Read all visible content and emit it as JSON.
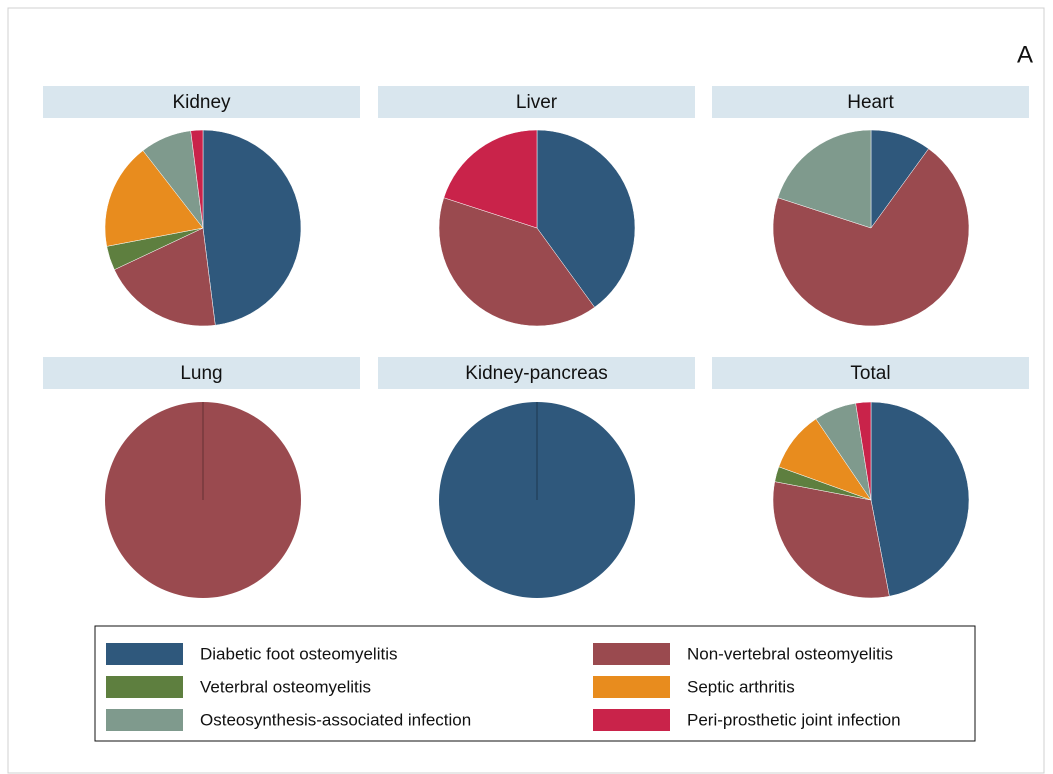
{
  "panel_label": "A",
  "categories": [
    "Diabetic foot osteomyelitis",
    "Non-vertebral osteomyelitis",
    "Veterbral osteomyelitis",
    "Septic arthritis",
    "Osteosynthesis-associated infection",
    "Peri-prosthetic joint infection"
  ],
  "colors": [
    "#2f587c",
    "#9a4a4f",
    "#5e7f3f",
    "#e88c1e",
    "#7f9a8d",
    "#c9234a"
  ],
  "chart_data": [
    {
      "type": "pie",
      "title": "Kidney",
      "values": [
        48,
        20,
        4,
        17.5,
        8.5,
        2
      ]
    },
    {
      "type": "pie",
      "title": "Liver",
      "values": [
        40,
        40,
        0,
        0,
        0,
        20
      ]
    },
    {
      "type": "pie",
      "title": "Heart",
      "values": [
        10,
        70,
        0,
        0,
        20,
        0
      ]
    },
    {
      "type": "pie",
      "title": "Lung",
      "values": [
        0,
        100,
        0,
        0,
        0,
        0
      ]
    },
    {
      "type": "pie",
      "title": "Kidney-pancreas",
      "values": [
        100,
        0,
        0,
        0,
        0,
        0
      ]
    },
    {
      "type": "pie",
      "title": "Total",
      "values": [
        47,
        31,
        2.5,
        10,
        7,
        2.5
      ]
    }
  ]
}
